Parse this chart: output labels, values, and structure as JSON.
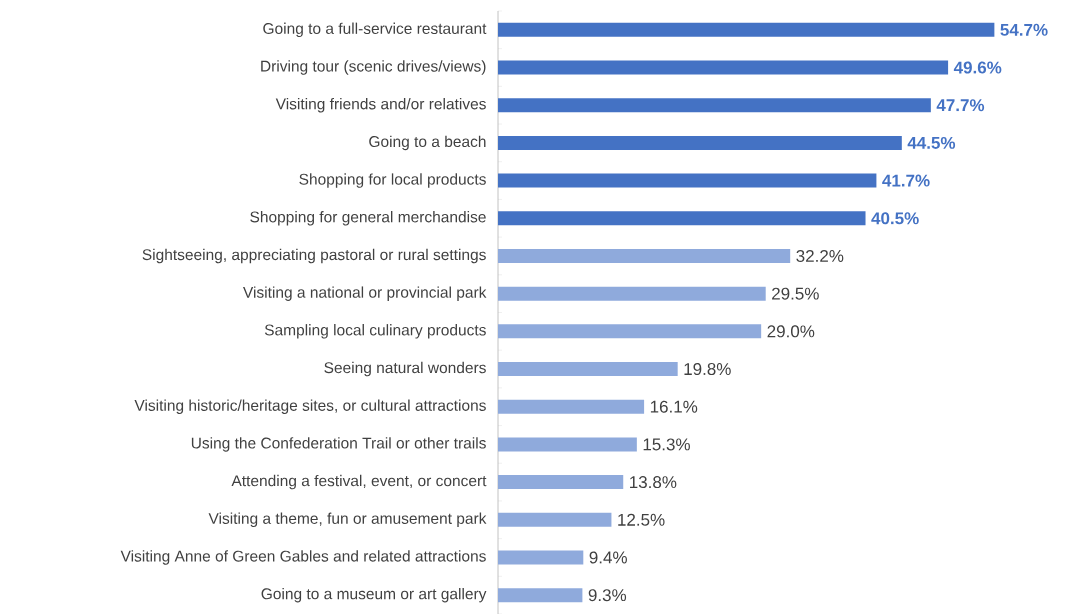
{
  "chart_data": {
    "type": "bar",
    "orientation": "horizontal",
    "categories": [
      "Going to a full-service restaurant",
      "Driving tour (scenic drives/views)",
      "Visiting friends and/or relatives",
      "Going to a beach",
      "Shopping for local products",
      "Shopping for general merchandise",
      "Sightseeing, appreciating pastoral or rural settings",
      "Visiting a national or provincial park",
      "Sampling local culinary products",
      "Seeing natural wonders",
      "Visiting historic/heritage sites, or cultural attractions",
      "Using the Confederation Trail or other trails",
      "Attending a festival, event, or concert",
      "Visiting a theme, fun or amusement park",
      "Visiting Anne of Green Gables and related attractions",
      "Going to a museum or art gallery"
    ],
    "values": [
      54.7,
      49.6,
      47.7,
      44.5,
      41.7,
      40.5,
      32.2,
      29.5,
      29.0,
      19.8,
      16.1,
      15.3,
      13.8,
      12.5,
      9.4,
      9.3
    ],
    "colors": [
      "#4472c4",
      "#4472c4",
      "#4472c4",
      "#4472c4",
      "#4472c4",
      "#4472c4",
      "#8faadc",
      "#8faadc",
      "#8faadc",
      "#8faadc",
      "#8faadc",
      "#8faadc",
      "#8faadc",
      "#8faadc",
      "#8faadc",
      "#8faadc"
    ],
    "value_labels": [
      "54.7%",
      "49.6%",
      "47.7%",
      "44.5%",
      "41.7%",
      "40.5%",
      "32.2%",
      "29.5%",
      "29.0%",
      "19.8%",
      "16.1%",
      "15.3%",
      "13.8%",
      "12.5%",
      "9.4%",
      "9.3%"
    ]
  }
}
